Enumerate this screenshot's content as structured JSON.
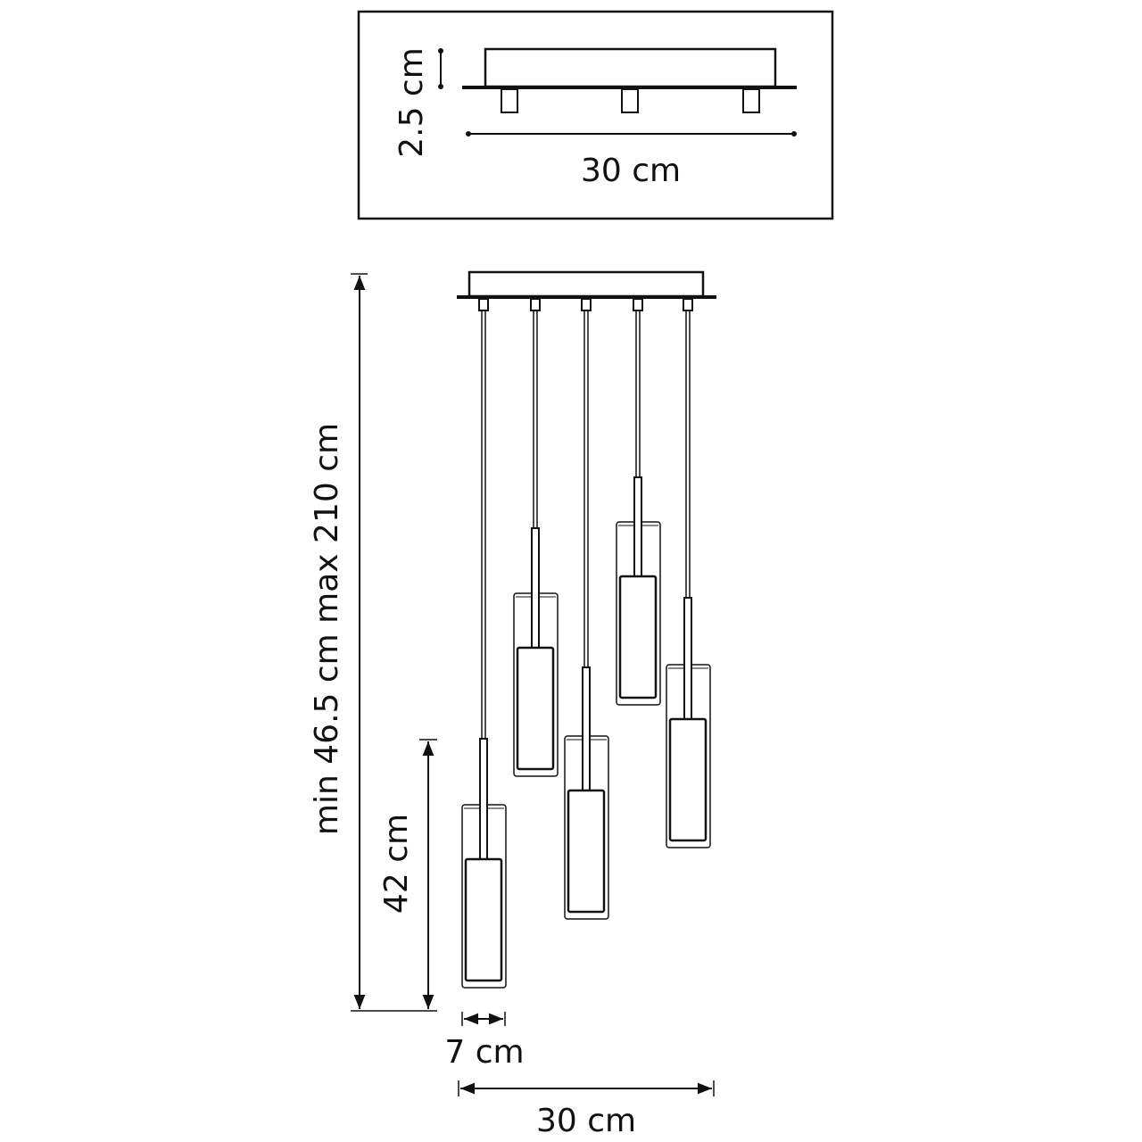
{
  "inset": {
    "height_label": "2.5 cm",
    "width_label": "30 cm"
  },
  "main": {
    "total_height_label": "min 46.5 cm max 210 cm",
    "shade_height_label": "42 cm",
    "shade_width_label": "7 cm",
    "canopy_width_label": "30 cm",
    "pendant_count": 5
  },
  "colors": {
    "line": "#111111",
    "background": "#ffffff"
  }
}
